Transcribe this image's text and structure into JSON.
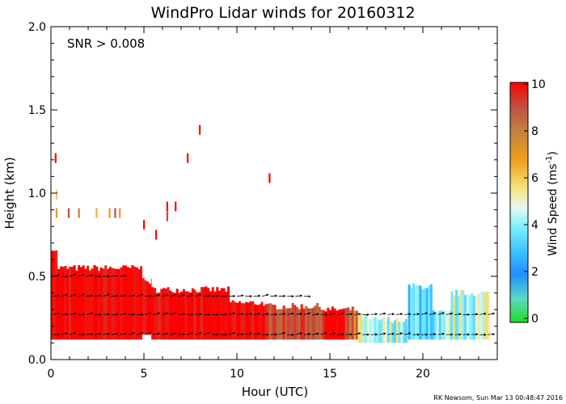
{
  "chart_data": {
    "type": "heatmap",
    "title": "WindPro Lidar winds for 20160312",
    "annotation": "SNR > 0.008",
    "credit": "RK Newsom, Sun Mar 13 00:48:47 2016",
    "xlabel": "Hour (UTC)",
    "ylabel": "Height (km)",
    "xlim": [
      0,
      24
    ],
    "ylim": [
      0,
      2.0
    ],
    "xticks": [
      "0",
      "5",
      "10",
      "15",
      "20"
    ],
    "yticks": [
      "0.0",
      "0.5",
      "1.0",
      "1.5",
      "2.0"
    ],
    "colorbar": {
      "label": "Wind Speed (ms",
      "label_sup": "-1",
      "label_end": ")",
      "range": [
        0,
        10
      ],
      "ticks": [
        "0",
        "2",
        "4",
        "6",
        "8",
        "10"
      ]
    },
    "bands": [
      {
        "t0": 0.0,
        "t1": 4.9,
        "z0": 0.12,
        "z1": 0.55,
        "speed": 10
      },
      {
        "t0": 0.0,
        "t1": 0.35,
        "z0": 0.5,
        "z1": 0.67,
        "speed": 10
      },
      {
        "t0": 4.9,
        "t1": 5.4,
        "z0": 0.15,
        "z1": 0.47,
        "speed": 10
      },
      {
        "t0": 5.4,
        "t1": 9.6,
        "z0": 0.12,
        "z1": 0.42,
        "speed": 10
      },
      {
        "t0": 9.6,
        "t1": 11.5,
        "z0": 0.12,
        "z1": 0.34,
        "speed": 10
      },
      {
        "t0": 11.5,
        "t1": 14.6,
        "z0": 0.12,
        "z1": 0.32,
        "speed": 9
      },
      {
        "t0": 14.6,
        "t1": 15.8,
        "z0": 0.12,
        "z1": 0.3,
        "speed": 10
      },
      {
        "t0": 15.8,
        "t1": 16.5,
        "z0": 0.12,
        "z1": 0.3,
        "speed": 8
      },
      {
        "t0": 16.5,
        "t1": 17.0,
        "z0": 0.1,
        "z1": 0.26,
        "speed": 5
      },
      {
        "t0": 17.0,
        "t1": 19.2,
        "z0": 0.1,
        "z1": 0.24,
        "speed": 4.5
      },
      {
        "t0": 19.2,
        "t1": 20.5,
        "z0": 0.12,
        "z1": 0.44,
        "speed": 3.5
      },
      {
        "t0": 20.5,
        "t1": 21.5,
        "z0": 0.12,
        "z1": 0.28,
        "speed": 4.2
      },
      {
        "t0": 21.5,
        "t1": 23.6,
        "z0": 0.12,
        "z1": 0.4,
        "speed": 4.6
      }
    ],
    "sparse_points": [
      {
        "t": 0.25,
        "z": 1.21,
        "speed": 10
      },
      {
        "t": 0.3,
        "z": 0.99,
        "speed": 6
      },
      {
        "t": 0.3,
        "z": 0.88,
        "speed": 7
      },
      {
        "t": 0.95,
        "z": 0.88,
        "speed": 9
      },
      {
        "t": 1.5,
        "z": 0.88,
        "speed": 8
      },
      {
        "t": 2.45,
        "z": 0.88,
        "speed": 6.5
      },
      {
        "t": 3.15,
        "z": 0.88,
        "speed": 7
      },
      {
        "t": 3.45,
        "z": 0.88,
        "speed": 9
      },
      {
        "t": 3.7,
        "z": 0.88,
        "speed": 7
      },
      {
        "t": 5.0,
        "z": 0.81,
        "speed": 10
      },
      {
        "t": 5.65,
        "z": 0.75,
        "speed": 10
      },
      {
        "t": 6.25,
        "z": 0.92,
        "speed": 10
      },
      {
        "t": 6.25,
        "z": 0.86,
        "speed": 9
      },
      {
        "t": 6.7,
        "z": 0.92,
        "speed": 10
      },
      {
        "t": 7.35,
        "z": 1.21,
        "speed": 10
      },
      {
        "t": 8.0,
        "z": 1.38,
        "speed": 10
      },
      {
        "t": 11.75,
        "z": 1.09,
        "speed": 10
      }
    ]
  }
}
